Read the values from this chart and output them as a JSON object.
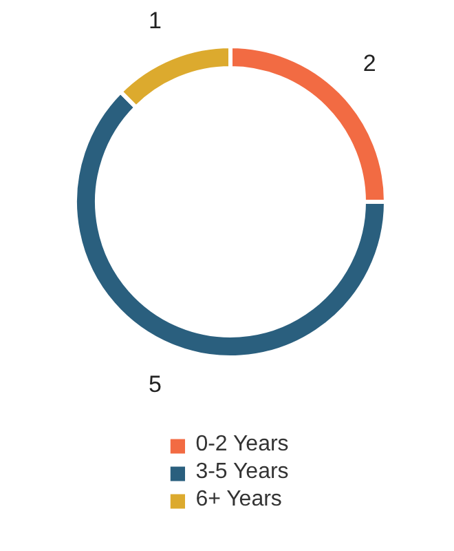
{
  "chart_data": {
    "type": "donut",
    "categories": [
      "0-2 Years",
      "3-5 Years",
      "6+ Years"
    ],
    "values": [
      2,
      5,
      1
    ],
    "colors": [
      "#f26b43",
      "#2a5f7e",
      "#dcaa2e"
    ],
    "data_labels": true,
    "legend": "bottom"
  }
}
